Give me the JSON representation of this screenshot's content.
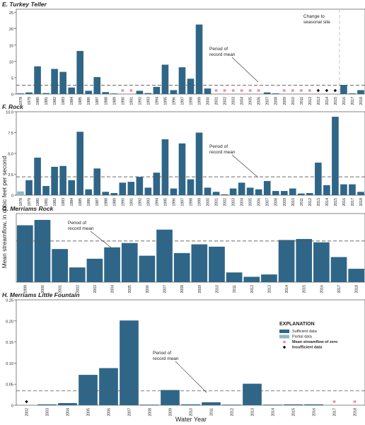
{
  "figure": {
    "ylabel": "Mean streamflow, in cubic feet per second",
    "xlabel": "Water Year"
  },
  "colors": {
    "sufficient": "#2f6688",
    "partial": "#8fb7c7",
    "zero_marker": "#e57d99",
    "insufficient_marker": "#000000",
    "mean_line": "#555555",
    "seasonal_line": "#bbbbbb",
    "axis_text": "#222222"
  },
  "legend": {
    "title": "EXPLANATION",
    "items": [
      {
        "label": "Sufficient data",
        "symbol": "swatch-dark"
      },
      {
        "label": "Partial data",
        "symbol": "swatch-light"
      },
      {
        "label": "Mean streamflow of zero",
        "symbol": "pink-asterisk"
      },
      {
        "label": "Insufficient data",
        "symbol": "black-diamond"
      }
    ]
  },
  "chart_data": [
    {
      "type": "bar",
      "title": "E. Turkey Teller",
      "categories": [
        "1978",
        "1979",
        "1980",
        "1981",
        "1982",
        "1983",
        "1984",
        "1985",
        "1986",
        "1987",
        "1988",
        "1989",
        "1990",
        "1991",
        "1992",
        "1993",
        "1994",
        "1995",
        "1996",
        "1997",
        "1998",
        "1999",
        "2000",
        "2001",
        "2002",
        "2003",
        "2004",
        "2005",
        "2006",
        "2007",
        "2008",
        "2009",
        "2010",
        "2011",
        "2012",
        "2013",
        "2014",
        "2015",
        "2016",
        "2017",
        "2018"
      ],
      "values": [
        0.2,
        0.5,
        8.5,
        0.3,
        7.7,
        6.8,
        2.0,
        13.2,
        1.0,
        5.2,
        0.6,
        0.1,
        0,
        0,
        1.0,
        0.3,
        2.2,
        9.0,
        1.2,
        8.2,
        4.7,
        21.3,
        1.7,
        0,
        0,
        0,
        0,
        0,
        0,
        0.5,
        0.2,
        0,
        0,
        0,
        0,
        null,
        null,
        null,
        2.8,
        0.2,
        1.2
      ],
      "status": [
        "sufficient",
        "sufficient",
        "sufficient",
        "sufficient",
        "sufficient",
        "sufficient",
        "sufficient",
        "sufficient",
        "sufficient",
        "sufficient",
        "sufficient",
        "sufficient",
        "zero",
        "zero",
        "sufficient",
        "sufficient",
        "sufficient",
        "sufficient",
        "sufficient",
        "sufficient",
        "sufficient",
        "sufficient",
        "sufficient",
        "zero",
        "zero",
        "zero",
        "zero",
        "zero",
        "zero",
        "sufficient",
        "sufficient",
        "zero",
        "zero",
        "zero",
        "zero",
        "insufficient",
        "insufficient",
        "insufficient",
        "sufficient",
        "sufficient",
        "sufficient"
      ],
      "yticks": [
        "0",
        "5",
        "10",
        "15",
        "20",
        "25"
      ],
      "ylim": [
        0,
        26
      ],
      "mean": 2.7,
      "mean_label": [
        "Period of",
        "record mean"
      ],
      "annotation": {
        "label": [
          "Change to",
          "seasonal site"
        ],
        "year": "2016"
      }
    },
    {
      "type": "bar",
      "title": "F. Rock",
      "categories": [
        "1978",
        "1979",
        "1980",
        "1981",
        "1982",
        "1983",
        "1984",
        "1985",
        "1986",
        "1987",
        "1988",
        "1989",
        "1990",
        "1991",
        "1992",
        "1993",
        "1994",
        "1995",
        "1996",
        "1997",
        "1998",
        "1999",
        "2000",
        "2001",
        "2002",
        "2003",
        "2004",
        "2005",
        "2006",
        "2007",
        "2008",
        "2009",
        "2010",
        "2011",
        "2012",
        "2013",
        "2014",
        "2015",
        "2016",
        "2017",
        "2018"
      ],
      "values": [
        0.45,
        1.8,
        4.5,
        1.1,
        3.4,
        3.5,
        1.8,
        7.6,
        0.7,
        3.2,
        0.4,
        0.25,
        1.5,
        1.6,
        2.2,
        0.9,
        2.7,
        6.7,
        0.8,
        6.2,
        1.9,
        7.5,
        0.9,
        0.4,
        0.1,
        0.8,
        1.5,
        0.9,
        0.7,
        1.7,
        0.5,
        0.5,
        0.8,
        0.2,
        0.25,
        3.9,
        1.2,
        9.4,
        1.3,
        1.3,
        0.4
      ],
      "status": [
        "partial",
        "sufficient",
        "sufficient",
        "sufficient",
        "sufficient",
        "sufficient",
        "sufficient",
        "sufficient",
        "sufficient",
        "sufficient",
        "sufficient",
        "sufficient",
        "sufficient",
        "sufficient",
        "sufficient",
        "sufficient",
        "sufficient",
        "sufficient",
        "sufficient",
        "sufficient",
        "sufficient",
        "sufficient",
        "sufficient",
        "sufficient",
        "sufficient",
        "sufficient",
        "sufficient",
        "sufficient",
        "sufficient",
        "sufficient",
        "sufficient",
        "sufficient",
        "sufficient",
        "sufficient",
        "sufficient",
        "sufficient",
        "sufficient",
        "sufficient",
        "sufficient",
        "sufficient",
        "sufficient"
      ],
      "yticks": [
        "0",
        "2.5",
        "5.0",
        "7.5",
        "10.0"
      ],
      "ylim": [
        0,
        10
      ],
      "mean": 2.2,
      "mean_label": [
        "Period of",
        "record mean"
      ]
    },
    {
      "type": "bar",
      "title": "G. Merriams Rock",
      "categories": [
        "1999",
        "2000",
        "2001",
        "2002",
        "2003",
        "2004",
        "2005",
        "2006",
        "2007",
        "2008",
        "2009",
        "2010",
        "2011",
        "2012",
        "2013",
        "2014",
        "2015",
        "2016",
        "2017",
        "2018"
      ],
      "values": [
        1.7,
        1.86,
        0.99,
        0.44,
        0.7,
        1.04,
        1.17,
        0.79,
        1.57,
        0.87,
        1.13,
        1.06,
        0.29,
        0.16,
        0.23,
        1.26,
        1.29,
        1.19,
        0.75,
        0.4
      ],
      "status": [
        "sufficient",
        "sufficient",
        "sufficient",
        "sufficient",
        "sufficient",
        "sufficient",
        "sufficient",
        "sufficient",
        "sufficient",
        "sufficient",
        "sufficient",
        "sufficient",
        "sufficient",
        "sufficient",
        "sufficient",
        "sufficient",
        "sufficient",
        "sufficient",
        "sufficient",
        "sufficient"
      ],
      "yticks": [],
      "ylim": [
        0,
        2.05
      ],
      "mean": 1.23,
      "mean_label": [
        "Period of",
        "record mean"
      ]
    },
    {
      "type": "bar",
      "title": "H. Merriams Little Fountain",
      "categories": [
        "2002",
        "2003",
        "2004",
        "2005",
        "2006",
        "2007",
        "2008",
        "2009",
        "2010",
        "2011",
        "2012",
        "2013",
        "2014",
        "2015",
        "2016",
        "2017",
        "2018"
      ],
      "values": [
        null,
        0.002,
        0.005,
        0.072,
        0.088,
        0.201,
        0.001,
        0.036,
        0.002,
        0.007,
        0.001,
        0.051,
        0.001,
        0.002,
        0.002,
        0,
        0
      ],
      "status": [
        "insufficient",
        "sufficient",
        "sufficient",
        "sufficient",
        "sufficient",
        "sufficient",
        "sufficient",
        "sufficient",
        "sufficient",
        "sufficient",
        "sufficient",
        "sufficient",
        "sufficient",
        "sufficient",
        "sufficient",
        "zero",
        "zero"
      ],
      "yticks": [
        "0",
        "0.05",
        "0.10",
        "0.15",
        "0.20",
        "0.25"
      ],
      "ylim": [
        0,
        0.25
      ],
      "mean": 0.034,
      "mean_label": [
        "Period of",
        "record mean"
      ]
    }
  ]
}
